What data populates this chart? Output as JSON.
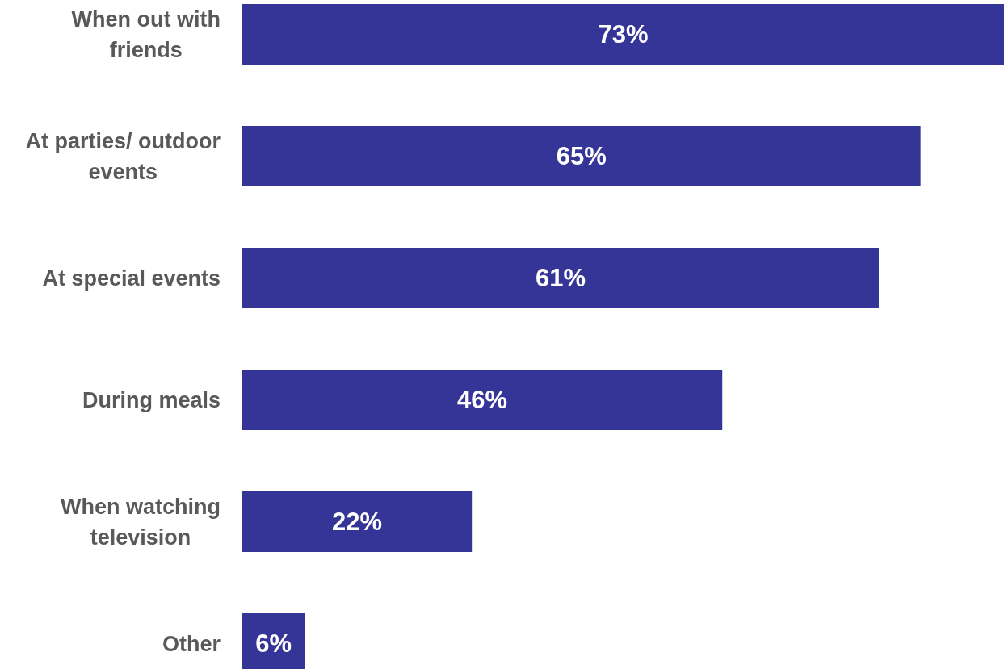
{
  "chart_data": {
    "type": "bar",
    "orientation": "horizontal",
    "categories": [
      "When out with friends",
      "At parties/ outdoor events",
      "At special events",
      "During meals",
      "When watching television",
      "Other"
    ],
    "values": [
      73,
      65,
      61,
      46,
      22,
      6
    ],
    "value_labels": [
      "73%",
      "65%",
      "61%",
      "46%",
      "22%",
      "6%"
    ],
    "color": "#353598"
  }
}
